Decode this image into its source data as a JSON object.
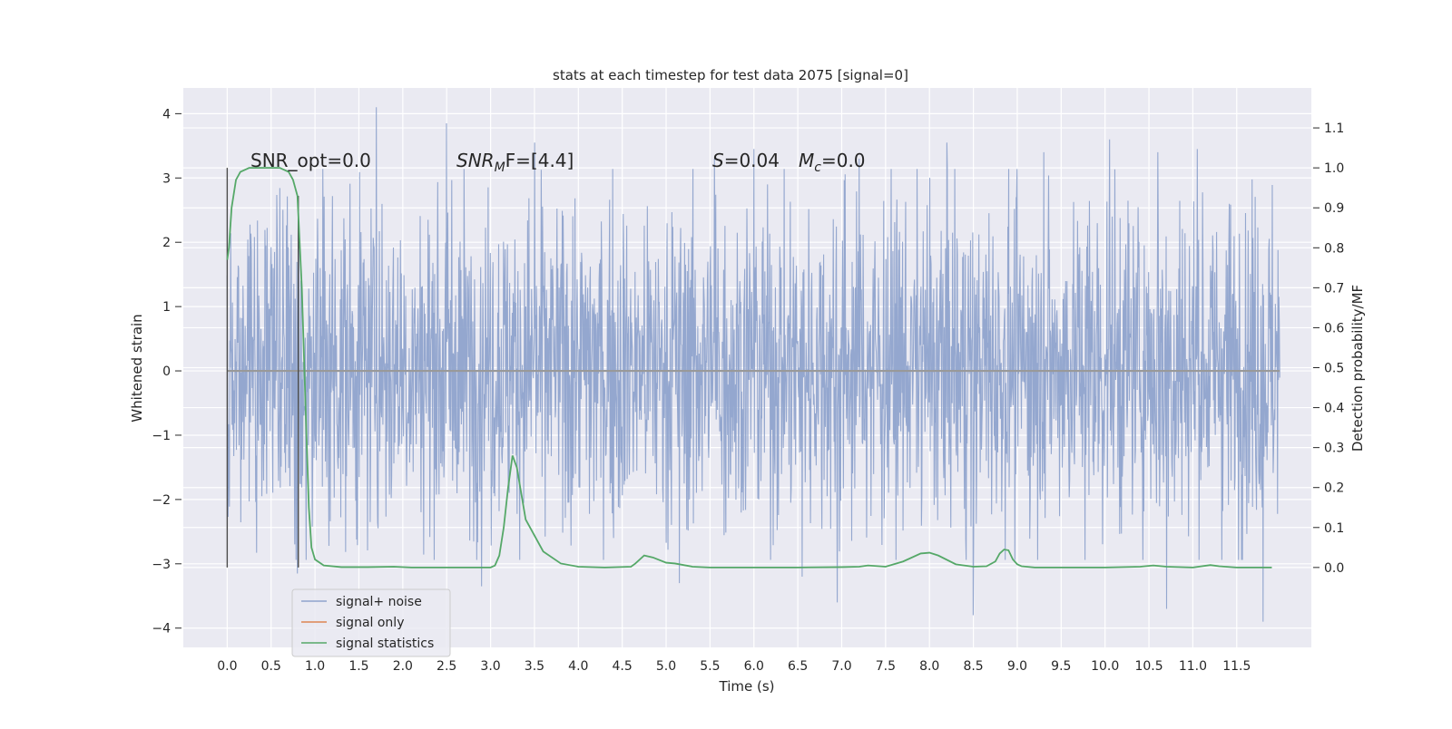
{
  "chart_data": {
    "type": "line",
    "title": "stats at each timestep for test data 2075 [signal=0]",
    "xlabel": "Time (s)",
    "ylabel": "Whitened strain",
    "ylabel_right": "Detection probability/MF",
    "xlim": [
      -0.5,
      12.35
    ],
    "ylim": [
      -4.3,
      4.4
    ],
    "ylim_right": [
      -0.2,
      1.2
    ],
    "x_ticks": [
      "0.0",
      "0.5",
      "1.0",
      "1.5",
      "2.0",
      "2.5",
      "3.0",
      "3.5",
      "4.0",
      "4.5",
      "5.0",
      "5.5",
      "6.0",
      "6.5",
      "7.0",
      "7.5",
      "8.0",
      "8.5",
      "9.0",
      "9.5",
      "10.0",
      "10.5",
      "11.0",
      "11.5"
    ],
    "y_ticks": [
      "4",
      "3",
      "2",
      "1",
      "0",
      "−1",
      "−2",
      "−3",
      "−4"
    ],
    "y_ticks_right": [
      "1.1",
      "1.0",
      "0.9",
      "0.8",
      "0.7",
      "0.6",
      "0.5",
      "0.4",
      "0.3",
      "0.2",
      "0.1",
      "0.0"
    ],
    "grid": true,
    "legend_position": "lower-left",
    "annotations": {
      "snr_opt": "SNR_opt=0.0",
      "snr_mf_main": "SNR",
      "snr_mf_sub": "M",
      "snr_mf_rest": "F=[4.4]",
      "s_main": "S",
      "s_rest": "=0.04",
      "mc_main": "M",
      "mc_sub": "c",
      "mc_rest": "=0.0"
    },
    "series": [
      {
        "name": "signal+ noise",
        "color": "#8fa3cc",
        "x_range": [
          0.0,
          11.99
        ],
        "typical_envelope": [
          -1.8,
          2.0
        ],
        "peaks": [
          {
            "x": 1.7,
            "y": 4.1
          },
          {
            "x": 2.5,
            "y": 3.85
          },
          {
            "x": 3.5,
            "y": 3.55
          },
          {
            "x": 5.55,
            "y": 3.3
          },
          {
            "x": 6.0,
            "y": 3.45
          },
          {
            "x": 7.2,
            "y": 3.3
          },
          {
            "x": 8.2,
            "y": 3.55
          },
          {
            "x": 9.3,
            "y": 3.4
          },
          {
            "x": 10.05,
            "y": 3.6
          },
          {
            "x": 10.6,
            "y": 3.4
          },
          {
            "x": 11.05,
            "y": 3.45
          }
        ],
        "troughs": [
          {
            "x": 0.8,
            "y": -3.15
          },
          {
            "x": 2.9,
            "y": -3.35
          },
          {
            "x": 5.15,
            "y": -3.3
          },
          {
            "x": 6.55,
            "y": -3.2
          },
          {
            "x": 6.95,
            "y": -3.6
          },
          {
            "x": 8.5,
            "y": -3.8
          },
          {
            "x": 10.7,
            "y": -3.7
          },
          {
            "x": 11.8,
            "y": -3.9
          }
        ]
      },
      {
        "name": "signal only",
        "color": "#dd8452",
        "x": [
          0.0,
          11.99
        ],
        "y": [
          0.0,
          0.0
        ]
      },
      {
        "name": "signal statistics",
        "color": "#55a868",
        "axis": "right",
        "x": [
          0.0,
          0.02,
          0.05,
          0.1,
          0.15,
          0.25,
          0.35,
          0.5,
          0.6,
          0.7,
          0.75,
          0.8,
          0.85,
          0.9,
          0.93,
          0.96,
          1.0,
          1.1,
          1.3,
          1.6,
          1.9,
          2.1,
          2.5,
          2.8,
          3.0,
          3.05,
          3.1,
          3.15,
          3.2,
          3.25,
          3.3,
          3.4,
          3.6,
          3.8,
          4.0,
          4.3,
          4.6,
          4.65,
          4.75,
          4.85,
          5.0,
          5.1,
          5.3,
          5.5,
          6.0,
          6.5,
          7.0,
          7.2,
          7.3,
          7.5,
          7.7,
          7.9,
          8.0,
          8.1,
          8.3,
          8.5,
          8.65,
          8.75,
          8.8,
          8.85,
          8.9,
          8.95,
          9.0,
          9.05,
          9.2,
          9.5,
          10.0,
          10.4,
          10.55,
          10.7,
          11.0,
          11.2,
          11.3,
          11.5,
          11.9
        ],
        "y": [
          0.77,
          0.8,
          0.9,
          0.97,
          0.99,
          1.0,
          1.0,
          1.0,
          1.0,
          0.99,
          0.97,
          0.93,
          0.7,
          0.35,
          0.15,
          0.05,
          0.02,
          0.005,
          0.001,
          0.001,
          0.002,
          0.0,
          0.0,
          0.0,
          0.0,
          0.005,
          0.03,
          0.1,
          0.2,
          0.28,
          0.25,
          0.12,
          0.04,
          0.01,
          0.002,
          0.0,
          0.002,
          0.01,
          0.03,
          0.025,
          0.012,
          0.01,
          0.002,
          0.0,
          0.0,
          0.0,
          0.001,
          0.002,
          0.005,
          0.002,
          0.015,
          0.035,
          0.037,
          0.03,
          0.008,
          0.002,
          0.003,
          0.015,
          0.035,
          0.045,
          0.043,
          0.02,
          0.008,
          0.003,
          0.0,
          0.0,
          0.0,
          0.002,
          0.005,
          0.002,
          0.0,
          0.006,
          0.003,
          0.0,
          0.0
        ]
      }
    ]
  }
}
